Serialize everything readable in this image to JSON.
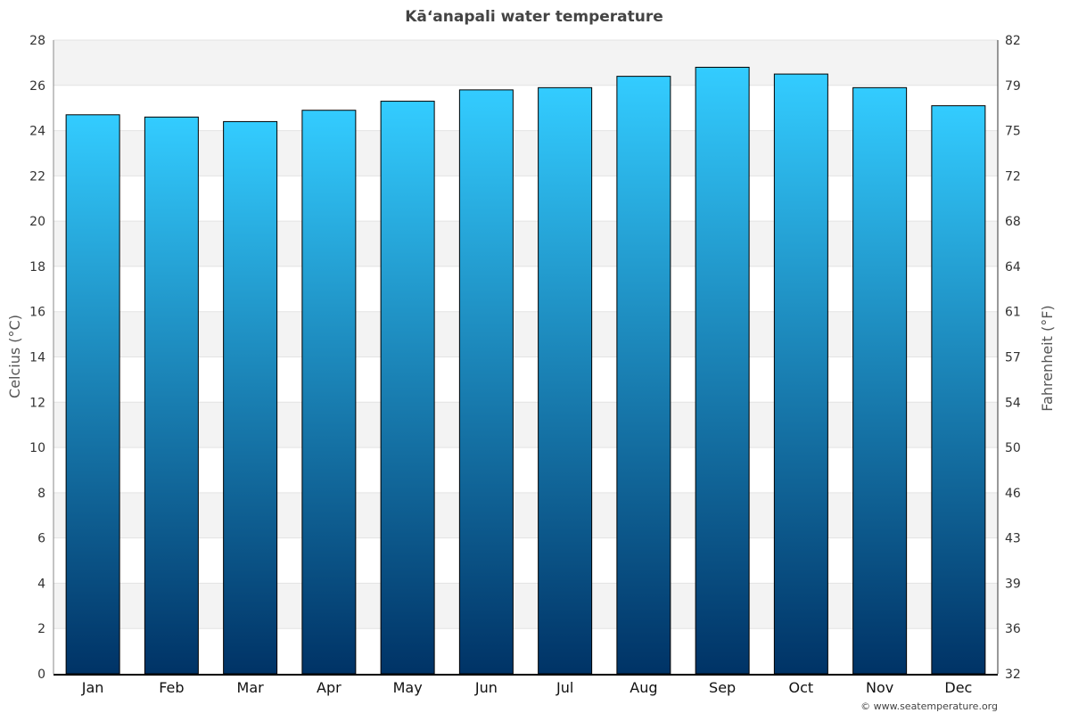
{
  "chart_data": {
    "type": "bar",
    "title": "Kāʻanapali water temperature",
    "ylabel": "Celcius (°C)",
    "y2label": "Fahrenheit (°F)",
    "categories": [
      "Jan",
      "Feb",
      "Mar",
      "Apr",
      "May",
      "Jun",
      "Jul",
      "Aug",
      "Sep",
      "Oct",
      "Nov",
      "Dec"
    ],
    "values": [
      24.7,
      24.6,
      24.4,
      24.9,
      25.3,
      25.8,
      25.9,
      26.4,
      26.8,
      26.5,
      25.9,
      25.1
    ],
    "ylim": [
      0,
      28
    ],
    "yticks": [
      "0",
      "2",
      "4",
      "6",
      "8",
      "10",
      "12",
      "14",
      "16",
      "18",
      "20",
      "22",
      "24",
      "26",
      "28"
    ],
    "y2ticks": [
      "32",
      "36",
      "39",
      "43",
      "46",
      "50",
      "54",
      "57",
      "61",
      "64",
      "68",
      "72",
      "75",
      "79",
      "82"
    ],
    "grid": true,
    "colors": {
      "bar_top": "#33ccff",
      "bar_bottom": "#003366",
      "band": "#f3f3f3",
      "grid": "#e3e3e3"
    }
  },
  "credit": "© www.seatemperature.org"
}
